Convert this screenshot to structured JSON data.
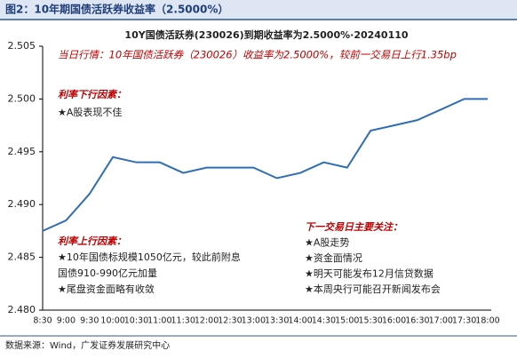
{
  "header": "图2：10年期国债活跃券收益率（2.5000%）",
  "source": "数据来源：Wind，广发证券发展研究中心",
  "chart_data": {
    "type": "line",
    "title": "10Y国债活跃券(230026)到期收益率为2.5000%·20240110",
    "annotation": "当日行情：10年国债活跃券（230026）收益率为2.5000%，较前一交易日上行1.35bp",
    "down_factors": {
      "title": "利率下行因素：",
      "items": [
        "★A股表现不佳"
      ]
    },
    "up_factors": {
      "title": "利率上行因素：",
      "items": [
        "★10年国债标规模1050亿元，较此前附息",
        "国债910-990亿元加量",
        "★尾盘资金面略有收敛"
      ]
    },
    "watch": {
      "title": "下一交易日主要关注：",
      "items": [
        "★A股走势",
        "★资金面情况",
        "★明天可能发布12月信贷数据",
        "★本周央行可能召开新闻发布会"
      ]
    },
    "categories": [
      "8:30",
      "9:00",
      "9:30",
      "10:00",
      "10:30",
      "11:00",
      "11:30",
      "12:00",
      "12:30",
      "13:00",
      "13:30",
      "14:00",
      "14:30",
      "15:00",
      "15:30",
      "16:00",
      "16:30",
      "17:00",
      "17:30",
      "18:00"
    ],
    "series": [
      {
        "name": "10Y国债活跃券",
        "color": "#2f6db5",
        "values": [
          2.4875,
          2.4885,
          2.491,
          2.4945,
          2.494,
          2.494,
          2.493,
          2.4935,
          2.4935,
          2.4935,
          2.4925,
          2.493,
          2.494,
          2.4935,
          2.497,
          2.4975,
          2.498,
          2.499,
          2.5,
          2.5
        ]
      }
    ],
    "ylim": [
      2.48,
      2.505
    ],
    "yticks": [
      {
        "value": 2.48,
        "label": "2.480"
      },
      {
        "value": 2.485,
        "label": "2.485"
      },
      {
        "value": 2.49,
        "label": "2.490"
      },
      {
        "value": 2.495,
        "label": "2.495"
      },
      {
        "value": 2.5,
        "label": "2.500"
      },
      {
        "value": 2.505,
        "label": "2.505"
      }
    ]
  }
}
